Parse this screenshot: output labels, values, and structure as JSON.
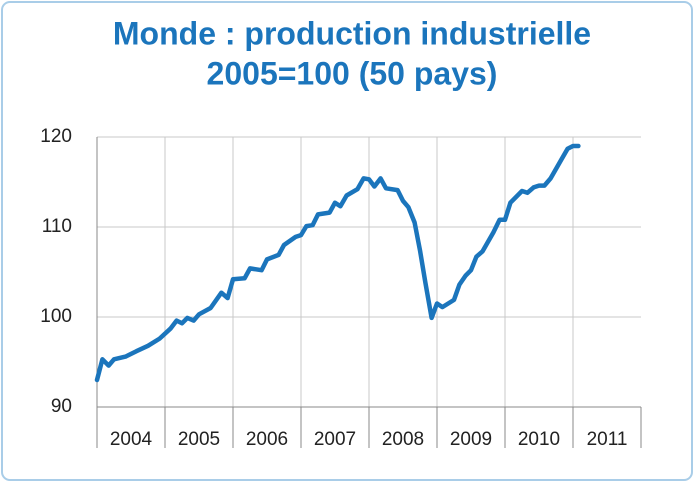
{
  "chart_data": {
    "type": "line",
    "title": "Monde : production industrielle",
    "subtitle": "2005=100 (50 pays)",
    "x": [
      2004.0,
      2004.08,
      2004.17,
      2004.25,
      2004.42,
      2004.58,
      2004.75,
      2004.92,
      2005.08,
      2005.17,
      2005.25,
      2005.33,
      2005.42,
      2005.5,
      2005.67,
      2005.83,
      2005.92,
      2006.0,
      2006.17,
      2006.25,
      2006.42,
      2006.5,
      2006.67,
      2006.75,
      2006.92,
      2007.0,
      2007.08,
      2007.17,
      2007.25,
      2007.42,
      2007.5,
      2007.58,
      2007.67,
      2007.83,
      2007.92,
      2008.0,
      2008.08,
      2008.17,
      2008.25,
      2008.42,
      2008.5,
      2008.58,
      2008.67,
      2008.75,
      2008.83,
      2008.92,
      2009.0,
      2009.08,
      2009.25,
      2009.33,
      2009.42,
      2009.5,
      2009.58,
      2009.67,
      2009.83,
      2009.92,
      2010.0,
      2010.08,
      2010.25,
      2010.33,
      2010.42,
      2010.5,
      2010.58,
      2010.67,
      2010.83,
      2010.92,
      2011.0,
      2011.08
    ],
    "series": [
      {
        "color": "#1b75bc",
        "values": [
          93.0,
          95.3,
          94.6,
          95.3,
          95.6,
          96.2,
          96.8,
          97.6,
          98.7,
          99.6,
          99.3,
          99.9,
          99.6,
          100.3,
          101.0,
          102.7,
          102.1,
          104.2,
          104.3,
          105.4,
          105.2,
          106.4,
          106.9,
          108.0,
          108.9,
          109.1,
          110.1,
          110.2,
          111.4,
          111.6,
          112.7,
          112.3,
          113.5,
          114.2,
          115.4,
          115.3,
          114.5,
          115.4,
          114.3,
          114.1,
          112.9,
          112.2,
          110.5,
          107.4,
          103.8,
          99.9,
          101.5,
          101.1,
          101.9,
          103.6,
          104.6,
          105.2,
          106.7,
          107.3,
          109.4,
          110.8,
          110.8,
          112.7,
          114.0,
          113.8,
          114.4,
          114.6,
          114.6,
          115.4,
          117.5,
          118.7,
          119.0,
          119.0
        ]
      }
    ],
    "xlim": [
      2004,
      2012
    ],
    "xticks": [
      {
        "value": 2004,
        "label": "2004"
      },
      {
        "value": 2005,
        "label": "2005"
      },
      {
        "value": 2006,
        "label": "2006"
      },
      {
        "value": 2007,
        "label": "2007"
      },
      {
        "value": 2008,
        "label": "2008"
      },
      {
        "value": 2009,
        "label": "2009"
      },
      {
        "value": 2010,
        "label": "2010"
      },
      {
        "value": 2011,
        "label": "2011"
      }
    ],
    "ylim": [
      90,
      120
    ],
    "yticks": [
      90,
      100,
      110,
      120
    ],
    "grid": true
  }
}
